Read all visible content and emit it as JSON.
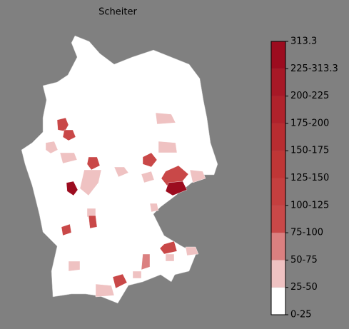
{
  "chart_data": {
    "type": "choropleth",
    "title": "Scheiter",
    "colorbar": {
      "labels": [
        "0-25",
        "25-50",
        "50-75",
        "75-100",
        "100-125",
        "125-150",
        "150-175",
        "175-200",
        "200-225",
        "225-313.3"
      ],
      "colors": [
        "#ffffff",
        "#efc2c2",
        "#db8080",
        "#c94848",
        "#c43f3f",
        "#bf3636",
        "#b82c30",
        "#b0222b",
        "#a71826",
        "#9c0c1f"
      ],
      "top": 313.3
    }
  }
}
